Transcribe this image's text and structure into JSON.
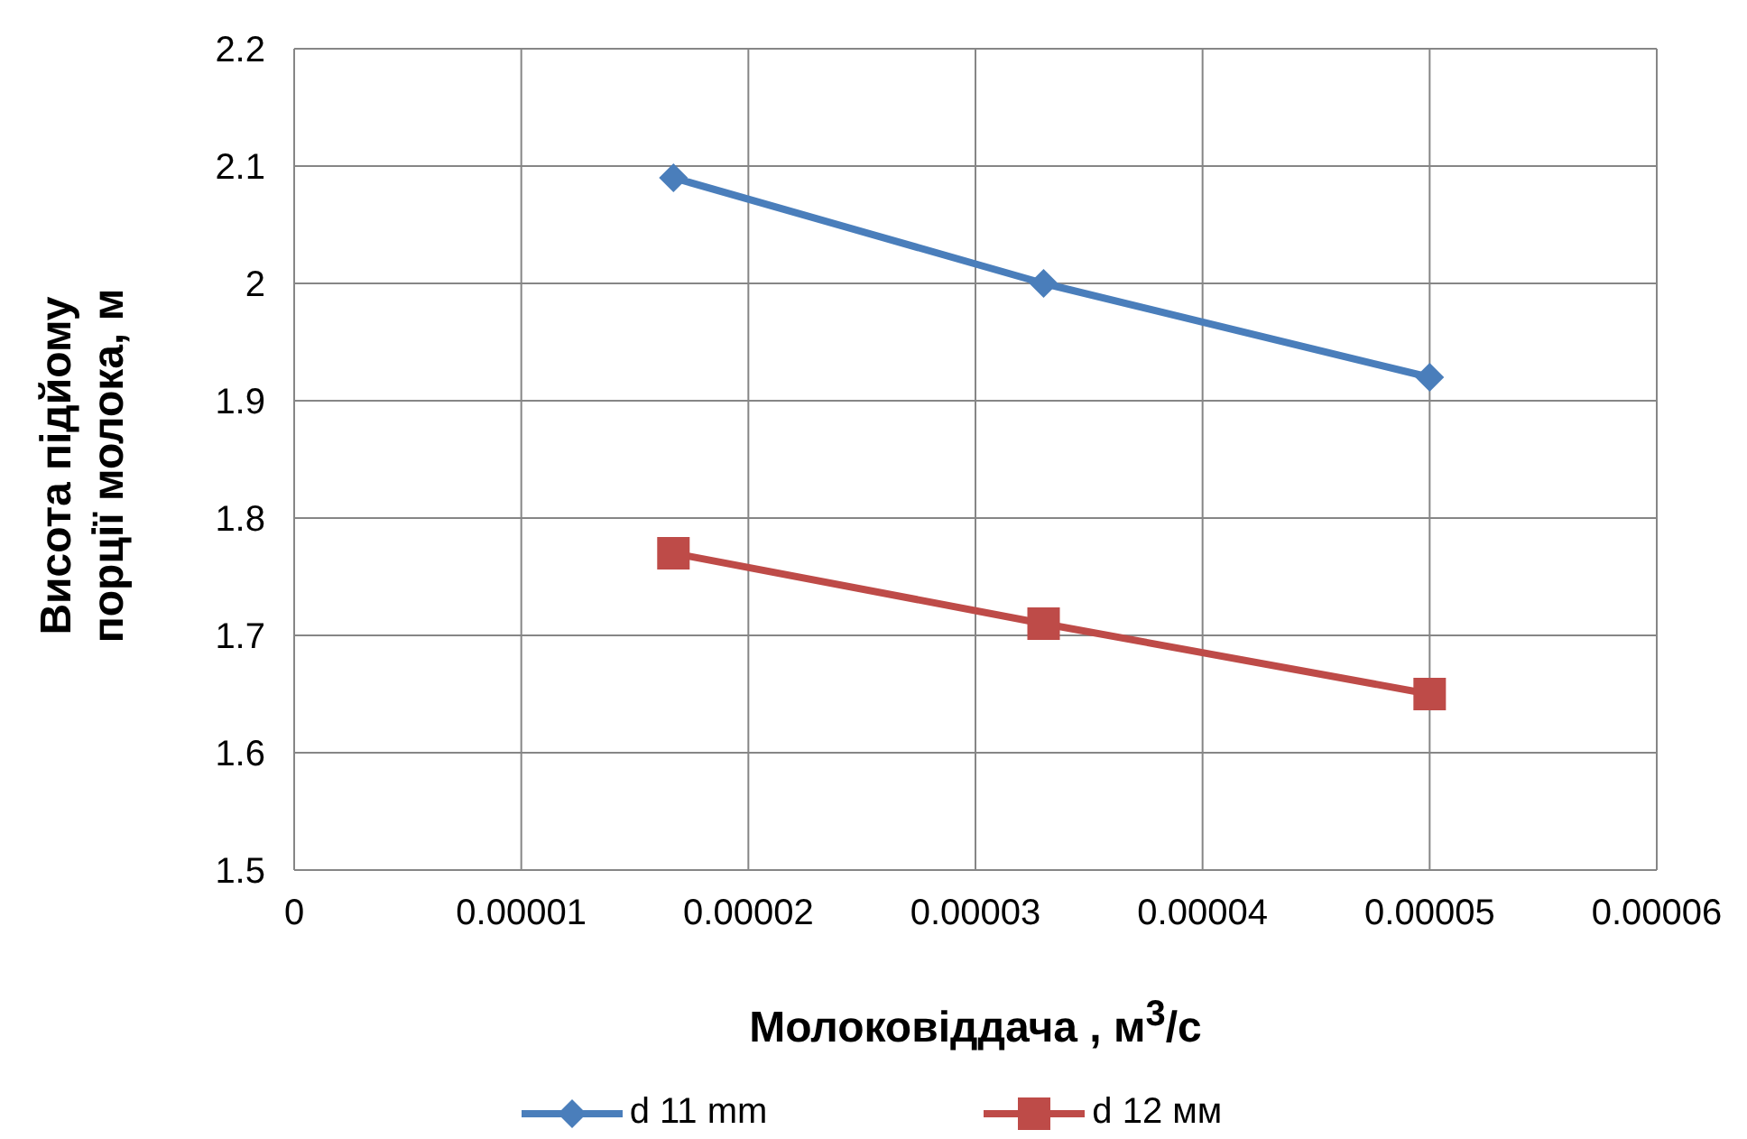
{
  "chart_data": {
    "type": "line",
    "xlabel": "Молоковіддача , м$^{3}$/с",
    "ylabel": "Висота підйому порції молока, м",
    "x": [
      1.67e-05,
      3.3e-05,
      5e-05
    ],
    "series": [
      {
        "name": "d 11 mm",
        "color": "#4a7ebb",
        "marker": "diamond",
        "values": [
          2.09,
          2.0,
          1.92
        ]
      },
      {
        "name": "d 12 мм",
        "color": "#be4b48",
        "marker": "square",
        "values": [
          1.77,
          1.71,
          1.65
        ]
      }
    ],
    "xlim": [
      0,
      6e-05
    ],
    "xticks": [
      0,
      {
        "value": 1e-05,
        "label": "0.00001"
      },
      {
        "value": 2e-05,
        "label": "0.00002"
      },
      {
        "value": 3e-05,
        "label": "0.00003"
      },
      {
        "value": 4e-05,
        "label": "0.00004"
      },
      {
        "value": 5e-05,
        "label": "0.00005"
      },
      {
        "value": 6e-05,
        "label": "0.00006"
      }
    ],
    "ylim": [
      1.5,
      2.2
    ],
    "yticks": [
      1.5,
      1.6,
      1.7,
      1.8,
      1.9,
      2,
      2.1,
      2.2
    ],
    "grid": true,
    "legend": "bottom"
  }
}
